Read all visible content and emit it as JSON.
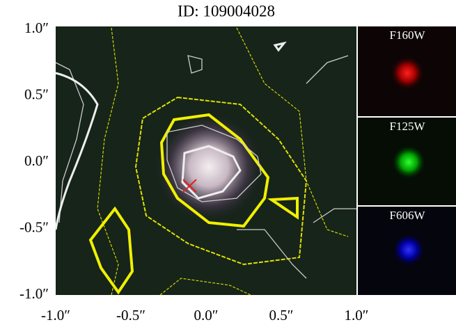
{
  "title": "ID: 109004028",
  "y_ticks": [
    "1.0″",
    "0.5″",
    "0.0″",
    "-0.5″",
    "-1.0″"
  ],
  "x_ticks": [
    "-1.0″",
    "-0.5″",
    "0.0″",
    "0.5″",
    "1.0″"
  ],
  "panels": [
    "F160W",
    "F125W",
    "F606W"
  ]
}
